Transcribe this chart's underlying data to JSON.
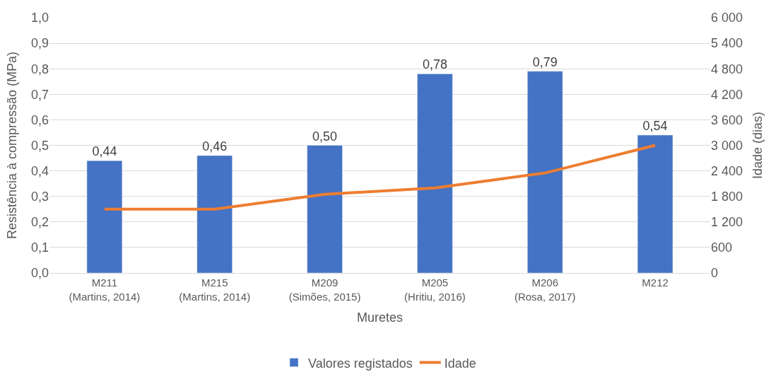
{
  "chart_data": {
    "type": "bar",
    "xlabel": "Muretes",
    "ylabel": "Resistência à compressão (MPa)",
    "y2label": "Idade (dias)",
    "categories": [
      "M211\n(Martins, 2014)",
      "M215\n(Martins, 2014)",
      "M209\n(Simões, 2015)",
      "M205\n(Hritiu, 2016)",
      "M206\n(Rosa, 2017)",
      "M212"
    ],
    "series": [
      {
        "name": "Valores registados",
        "color": "#4472c4",
        "values": [
          0.44,
          0.46,
          0.5,
          0.78,
          0.79,
          0.54
        ],
        "value_labels": [
          "0,44",
          "0,46",
          "0,50",
          "0,78",
          "0,79",
          "0,54"
        ]
      },
      {
        "name": "Idade",
        "type": "line",
        "axis": "y2",
        "color": "#ed7d31",
        "values": [
          1500,
          1500,
          1850,
          2000,
          2350,
          3000
        ],
        "marker": "none",
        "line_style": "solid"
      }
    ],
    "ylim": [
      0,
      1.0
    ],
    "yticks": [
      {
        "value": 0,
        "label": "0,0"
      },
      {
        "value": 0.1,
        "label": "0,1"
      },
      {
        "value": 0.2,
        "label": "0,2"
      },
      {
        "value": 0.3,
        "label": "0,3"
      },
      {
        "value": 0.4,
        "label": "0,4"
      },
      {
        "value": 0.5,
        "label": "0,5"
      },
      {
        "value": 0.6,
        "label": "0,6"
      },
      {
        "value": 0.7,
        "label": "0,7"
      },
      {
        "value": 0.8,
        "label": "0,8"
      },
      {
        "value": 0.9,
        "label": "0,9"
      },
      {
        "value": 1.0,
        "label": "1,0"
      }
    ],
    "y2lim": [
      0,
      6000
    ],
    "y2ticks": [
      0,
      600,
      {
        "value": 1200,
        "label": "1 200"
      },
      {
        "value": 1800,
        "label": "1 800"
      },
      {
        "value": 2400,
        "label": "2 400"
      },
      {
        "value": 3000,
        "label": "3 000"
      },
      {
        "value": 3600,
        "label": "3 600"
      },
      {
        "value": 4200,
        "label": "4 200"
      },
      {
        "value": 4800,
        "label": "4 800"
      },
      {
        "value": 5400,
        "label": "5 400"
      },
      {
        "value": 6000,
        "label": "6 000"
      }
    ],
    "grid": "y",
    "legend": "bottom"
  }
}
